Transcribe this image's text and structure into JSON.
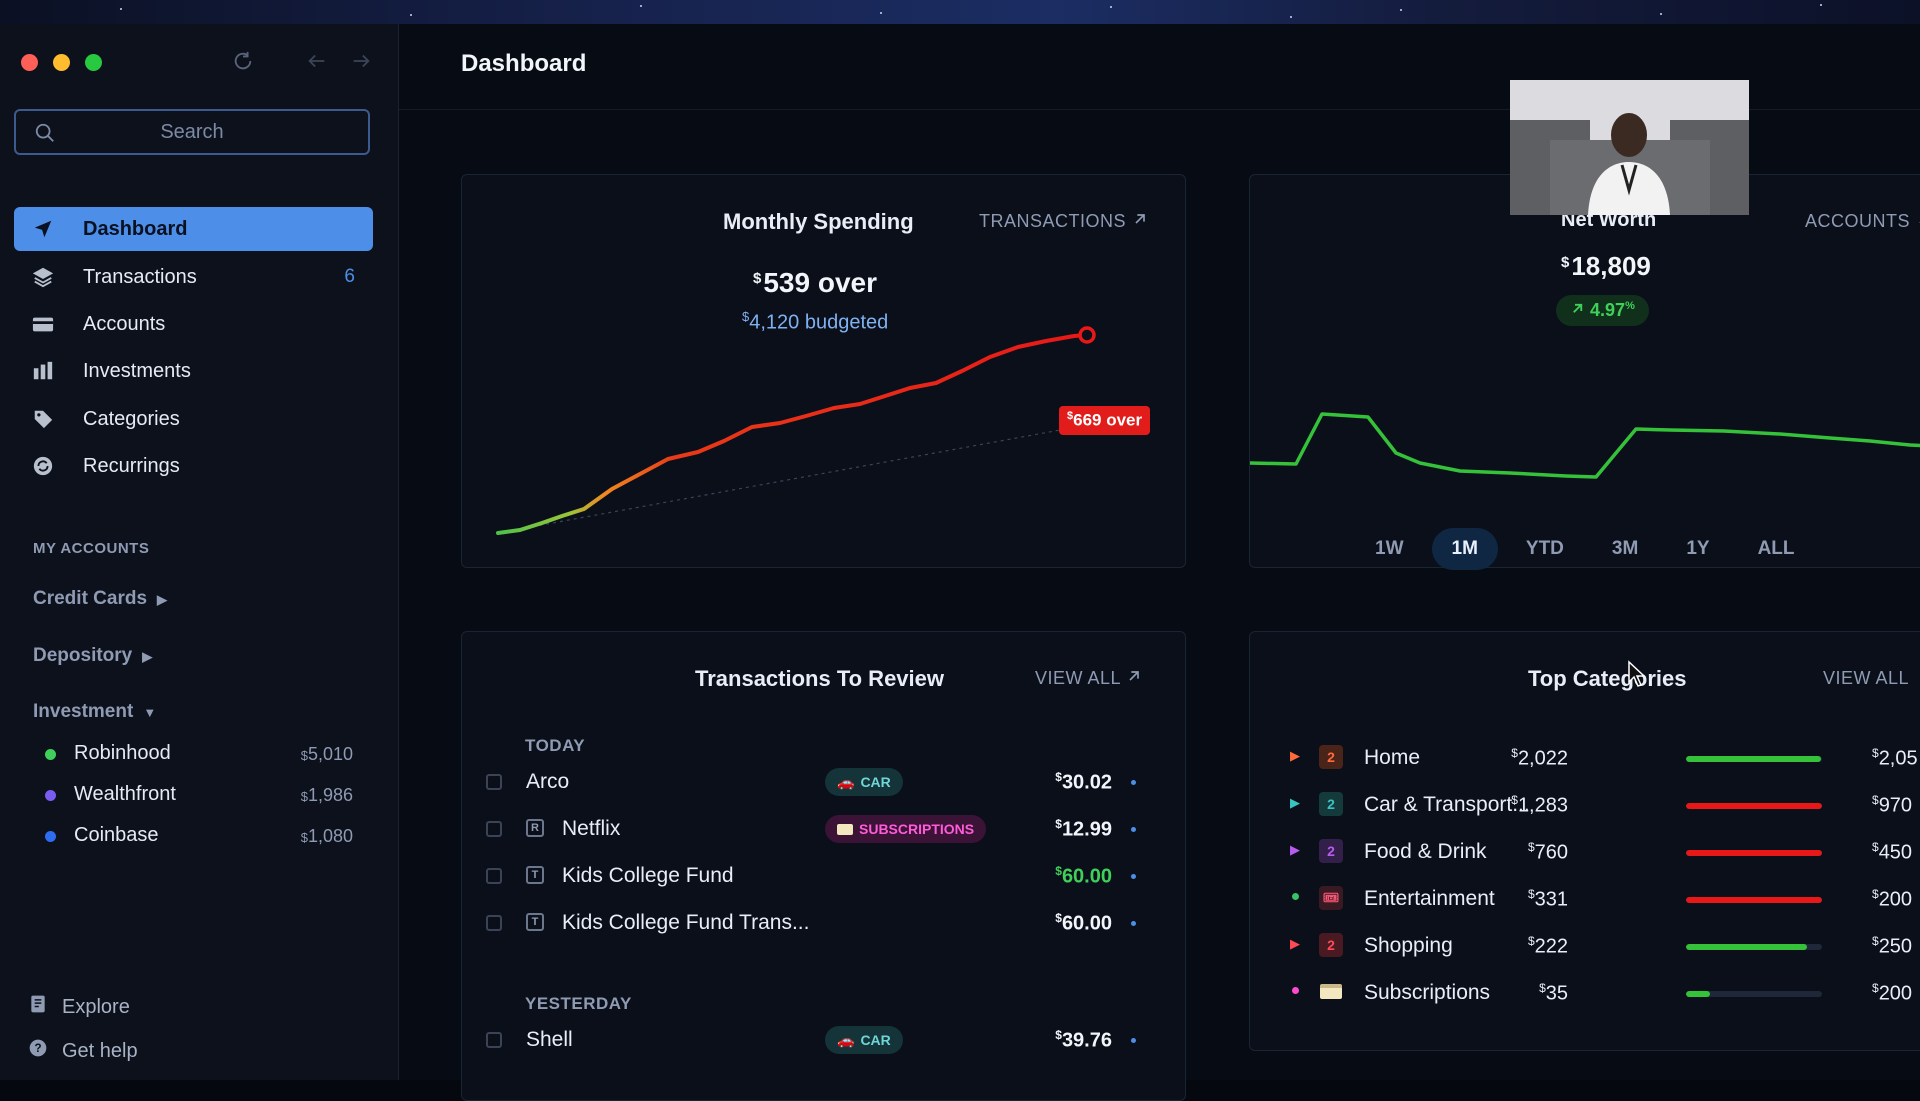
{
  "window": {
    "title": "Dashboard"
  },
  "search": {
    "placeholder": "Search"
  },
  "nav": [
    {
      "label": "Dashboard",
      "icon": "navigation-arrow-icon",
      "active": true
    },
    {
      "label": "Transactions",
      "icon": "layers-icon",
      "count": "6"
    },
    {
      "label": "Accounts",
      "icon": "credit-card-icon"
    },
    {
      "label": "Investments",
      "icon": "bar-chart-icon"
    },
    {
      "label": "Categories",
      "icon": "tag-icon"
    },
    {
      "label": "Recurrings",
      "icon": "recurring-icon"
    }
  ],
  "accounts": {
    "section_label": "MY ACCOUNTS",
    "groups": [
      {
        "label": "Credit Cards",
        "state": "collapsed"
      },
      {
        "label": "Depository",
        "state": "collapsed"
      },
      {
        "label": "Investment",
        "state": "expanded"
      }
    ],
    "items": [
      {
        "name": "Robinhood",
        "balance": "5,010",
        "color": "#3fd05a"
      },
      {
        "name": "Wealthfront",
        "balance": "1,986",
        "color": "#7a5cf0"
      },
      {
        "name": "Coinbase",
        "balance": "1,080",
        "color": "#2f6df0"
      }
    ]
  },
  "footer": {
    "explore": "Explore",
    "help": "Get help"
  },
  "monthly_spending": {
    "title": "Monthly Spending",
    "link": "TRANSACTIONS",
    "amount": "539 over",
    "budgeted": "4,120 budgeted",
    "badge": "669 over",
    "colors": {
      "over": "#e21b1b",
      "under": "#4cc24a"
    }
  },
  "net_worth": {
    "title": "Net Worth",
    "link": "ACCOUNTS",
    "amount": "18,809",
    "change": "4.97",
    "change_suffix": "%",
    "ranges": [
      "1W",
      "1M",
      "YTD",
      "3M",
      "1Y",
      "ALL"
    ],
    "active_range": "1M"
  },
  "review": {
    "title": "Transactions To Review",
    "link": "VIEW ALL",
    "days": [
      {
        "label": "TODAY",
        "rows": [
          {
            "name": "Arco",
            "tag": "CAR",
            "amount": "30.02",
            "kind": "car"
          },
          {
            "name": "Netflix",
            "tag": "SUBSCRIPTIONS",
            "amount": "12.99",
            "kind": "subs",
            "icon_letter": "R"
          },
          {
            "name": "Kids College Fund",
            "amount": "60.00",
            "credit": true,
            "icon_letter": "T"
          },
          {
            "name": "Kids College Fund Trans...",
            "amount": "60.00",
            "icon_letter": "T"
          }
        ]
      },
      {
        "label": "YESTERDAY",
        "rows": [
          {
            "name": "Shell",
            "tag": "CAR",
            "amount": "39.76",
            "kind": "car"
          }
        ]
      }
    ]
  },
  "top_categories": {
    "title": "Top Categories",
    "link": "VIEW ALL",
    "rows": [
      {
        "name": "Home",
        "amount": "2,022",
        "budget": "2,05",
        "badge": "2",
        "progress": 0.99,
        "bar_color": "#35c23a",
        "accent": "#ff6a3d"
      },
      {
        "name": "Car & Transport...",
        "amount": "1,283",
        "budget": "970",
        "badge": "2",
        "progress": 1.0,
        "bar_color": "#e81818",
        "accent": "#3ac3c3"
      },
      {
        "name": "Food & Drink",
        "amount": "760",
        "budget": "450",
        "badge": "2",
        "progress": 1.0,
        "bar_color": "#e81818",
        "accent": "#b85cf0"
      },
      {
        "name": "Entertainment",
        "amount": "331",
        "budget": "200",
        "progress": 1.0,
        "bar_color": "#e81818",
        "accent": "#38c26a"
      },
      {
        "name": "Shopping",
        "amount": "222",
        "budget": "250",
        "badge": "2",
        "progress": 0.89,
        "bar_color": "#35c23a",
        "accent": "#ff4a55"
      },
      {
        "name": "Subscriptions",
        "amount": "35",
        "budget": "200",
        "progress": 0.18,
        "bar_color": "#35c23a",
        "accent": "#ff4ad0"
      }
    ]
  }
}
